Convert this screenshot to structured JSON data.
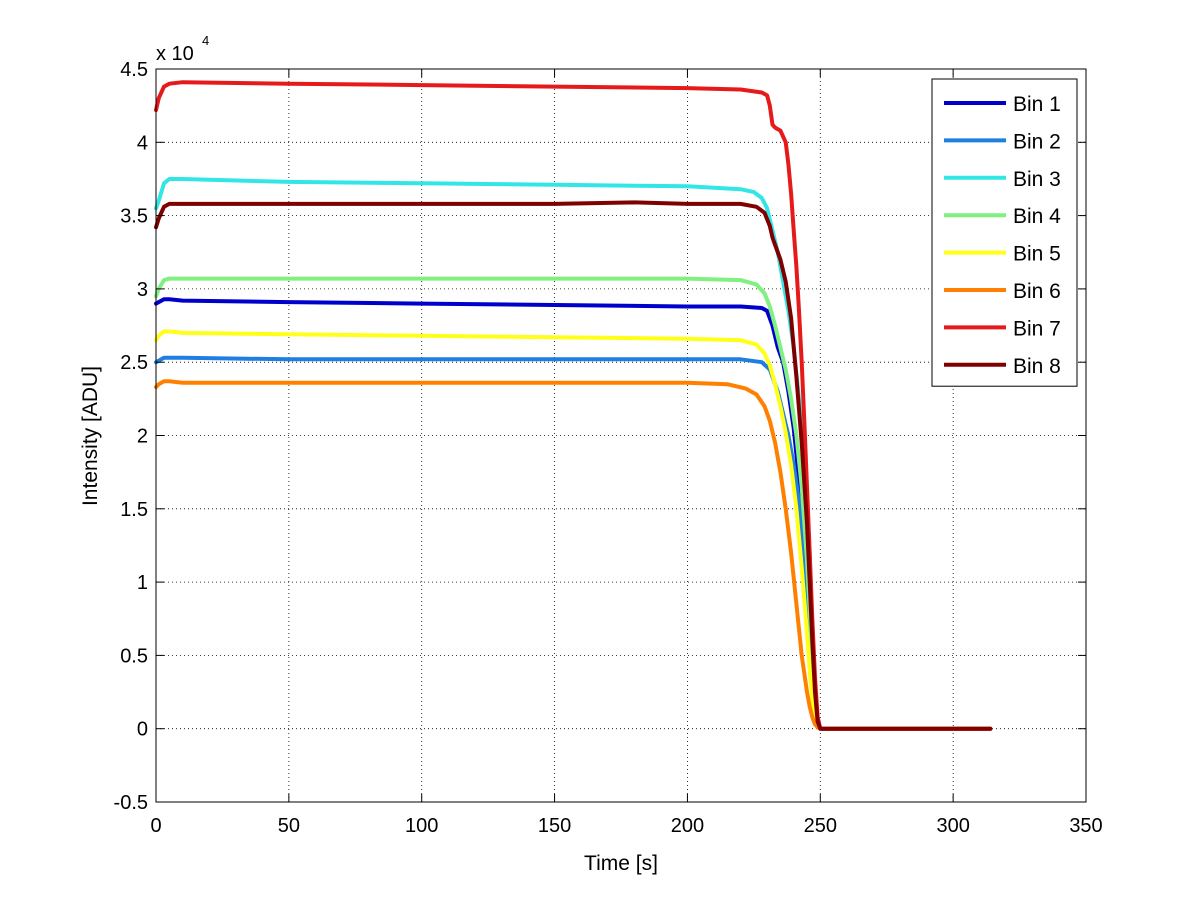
{
  "chart_data": {
    "type": "line",
    "title": "",
    "xlabel": "Time [s]",
    "ylabel": "Intensity [ADU]",
    "xlim": [
      0,
      350
    ],
    "ylim": [
      -0.5,
      4.5
    ],
    "x_ticks": [
      "0",
      "50",
      "100",
      "150",
      "200",
      "250",
      "300",
      "350"
    ],
    "x_tick_values": [
      0,
      50,
      100,
      150,
      200,
      250,
      300,
      350
    ],
    "y_ticks": [
      "-0.5",
      "0",
      "0.5",
      "1",
      "1.5",
      "2",
      "2.5",
      "3",
      "3.5",
      "4",
      "4.5"
    ],
    "y_tick_values": [
      -0.5,
      0,
      0.5,
      1,
      1.5,
      2,
      2.5,
      3,
      3.5,
      4,
      4.5
    ],
    "y_multiplier_base": "x 10",
    "y_multiplier_exponent": "4",
    "grid": true,
    "legend_position": "top-right",
    "series": [
      {
        "name": "Bin 1",
        "color": "#0000cc",
        "points": [
          [
            0,
            2.9
          ],
          [
            1,
            2.91
          ],
          [
            3,
            2.93
          ],
          [
            5,
            2.93
          ],
          [
            10,
            2.92
          ],
          [
            50,
            2.91
          ],
          [
            100,
            2.9
          ],
          [
            150,
            2.89
          ],
          [
            200,
            2.88
          ],
          [
            220,
            2.88
          ],
          [
            228,
            2.87
          ],
          [
            230,
            2.85
          ],
          [
            232,
            2.75
          ],
          [
            234,
            2.6
          ],
          [
            236,
            2.5
          ],
          [
            238,
            2.3
          ],
          [
            240,
            2.05
          ],
          [
            242,
            1.7
          ],
          [
            244,
            1.3
          ],
          [
            246,
            0.75
          ],
          [
            247,
            0.4
          ],
          [
            248,
            0.1
          ],
          [
            249,
            0.02
          ],
          [
            250,
            0.0
          ],
          [
            314,
            0.0
          ]
        ]
      },
      {
        "name": "Bin 2",
        "color": "#1f7fe0",
        "points": [
          [
            0,
            2.5
          ],
          [
            1,
            2.51
          ],
          [
            3,
            2.53
          ],
          [
            5,
            2.53
          ],
          [
            10,
            2.53
          ],
          [
            50,
            2.52
          ],
          [
            100,
            2.52
          ],
          [
            150,
            2.52
          ],
          [
            200,
            2.52
          ],
          [
            220,
            2.52
          ],
          [
            228,
            2.5
          ],
          [
            231,
            2.45
          ],
          [
            234,
            2.3
          ],
          [
            236,
            2.15
          ],
          [
            238,
            2.0
          ],
          [
            240,
            1.8
          ],
          [
            242,
            1.55
          ],
          [
            244,
            1.2
          ],
          [
            246,
            0.75
          ],
          [
            247,
            0.45
          ],
          [
            248,
            0.15
          ],
          [
            249,
            0.02
          ],
          [
            250,
            0.0
          ],
          [
            314,
            0.0
          ]
        ]
      },
      {
        "name": "Bin 3",
        "color": "#33e6e6",
        "points": [
          [
            0,
            3.55
          ],
          [
            1,
            3.6
          ],
          [
            3,
            3.72
          ],
          [
            5,
            3.75
          ],
          [
            10,
            3.75
          ],
          [
            50,
            3.73
          ],
          [
            100,
            3.72
          ],
          [
            150,
            3.71
          ],
          [
            200,
            3.7
          ],
          [
            220,
            3.68
          ],
          [
            225,
            3.66
          ],
          [
            228,
            3.62
          ],
          [
            230,
            3.55
          ],
          [
            232,
            3.4
          ],
          [
            234,
            3.25
          ],
          [
            236,
            3.05
          ],
          [
            238,
            2.85
          ],
          [
            240,
            2.6
          ],
          [
            242,
            2.25
          ],
          [
            244,
            1.8
          ],
          [
            246,
            1.2
          ],
          [
            247,
            0.7
          ],
          [
            248,
            0.3
          ],
          [
            249,
            0.05
          ],
          [
            250,
            0.0
          ],
          [
            314,
            0.0
          ]
        ]
      },
      {
        "name": "Bin 4",
        "color": "#80f080",
        "points": [
          [
            0,
            2.95
          ],
          [
            1,
            3.0
          ],
          [
            3,
            3.06
          ],
          [
            5,
            3.07
          ],
          [
            10,
            3.07
          ],
          [
            50,
            3.07
          ],
          [
            100,
            3.07
          ],
          [
            150,
            3.07
          ],
          [
            200,
            3.07
          ],
          [
            220,
            3.06
          ],
          [
            226,
            3.03
          ],
          [
            229,
            2.97
          ],
          [
            231,
            2.88
          ],
          [
            233,
            2.75
          ],
          [
            235,
            2.6
          ],
          [
            237,
            2.45
          ],
          [
            239,
            2.25
          ],
          [
            241,
            2.0
          ],
          [
            243,
            1.65
          ],
          [
            245,
            1.15
          ],
          [
            246,
            0.8
          ],
          [
            247,
            0.45
          ],
          [
            248,
            0.15
          ],
          [
            249,
            0.02
          ],
          [
            250,
            0.0
          ],
          [
            314,
            0.0
          ]
        ]
      },
      {
        "name": "Bin 5",
        "color": "#ffff1a",
        "points": [
          [
            0,
            2.65
          ],
          [
            1,
            2.68
          ],
          [
            3,
            2.71
          ],
          [
            5,
            2.71
          ],
          [
            10,
            2.7
          ],
          [
            50,
            2.69
          ],
          [
            100,
            2.68
          ],
          [
            150,
            2.67
          ],
          [
            200,
            2.66
          ],
          [
            220,
            2.65
          ],
          [
            226,
            2.62
          ],
          [
            229,
            2.56
          ],
          [
            231,
            2.48
          ],
          [
            233,
            2.35
          ],
          [
            235,
            2.2
          ],
          [
            237,
            2.02
          ],
          [
            239,
            1.8
          ],
          [
            241,
            1.5
          ],
          [
            243,
            1.1
          ],
          [
            245,
            0.65
          ],
          [
            246,
            0.4
          ],
          [
            247,
            0.2
          ],
          [
            248,
            0.05
          ],
          [
            249,
            0.01
          ],
          [
            250,
            0.0
          ],
          [
            314,
            0.0
          ]
        ]
      },
      {
        "name": "Bin 6",
        "color": "#ff8000",
        "points": [
          [
            0,
            2.33
          ],
          [
            1,
            2.35
          ],
          [
            3,
            2.37
          ],
          [
            5,
            2.37
          ],
          [
            10,
            2.36
          ],
          [
            50,
            2.36
          ],
          [
            100,
            2.36
          ],
          [
            150,
            2.36
          ],
          [
            200,
            2.36
          ],
          [
            215,
            2.35
          ],
          [
            222,
            2.32
          ],
          [
            226,
            2.28
          ],
          [
            229,
            2.2
          ],
          [
            231,
            2.1
          ],
          [
            233,
            1.95
          ],
          [
            235,
            1.75
          ],
          [
            237,
            1.5
          ],
          [
            239,
            1.2
          ],
          [
            241,
            0.85
          ],
          [
            243,
            0.5
          ],
          [
            245,
            0.25
          ],
          [
            246,
            0.15
          ],
          [
            247,
            0.08
          ],
          [
            248,
            0.03
          ],
          [
            249,
            0.01
          ],
          [
            250,
            0.0
          ],
          [
            314,
            0.0
          ]
        ]
      },
      {
        "name": "Bin 7",
        "color": "#e61a1a",
        "points": [
          [
            0,
            4.22
          ],
          [
            1,
            4.3
          ],
          [
            3,
            4.38
          ],
          [
            5,
            4.4
          ],
          [
            10,
            4.41
          ],
          [
            50,
            4.4
          ],
          [
            100,
            4.39
          ],
          [
            150,
            4.38
          ],
          [
            200,
            4.37
          ],
          [
            220,
            4.36
          ],
          [
            228,
            4.34
          ],
          [
            230,
            4.32
          ],
          [
            231,
            4.25
          ],
          [
            232,
            4.12
          ],
          [
            233,
            4.1
          ],
          [
            235,
            4.08
          ],
          [
            237,
            4.0
          ],
          [
            238,
            3.85
          ],
          [
            239,
            3.65
          ],
          [
            240,
            3.4
          ],
          [
            241,
            3.15
          ],
          [
            242,
            2.85
          ],
          [
            243,
            2.5
          ],
          [
            244,
            2.1
          ],
          [
            245,
            1.65
          ],
          [
            246,
            1.2
          ],
          [
            247,
            0.75
          ],
          [
            248,
            0.35
          ],
          [
            249,
            0.08
          ],
          [
            250,
            0.0
          ],
          [
            314,
            0.0
          ]
        ]
      },
      {
        "name": "Bin 8",
        "color": "#800000",
        "points": [
          [
            0,
            3.42
          ],
          [
            1,
            3.48
          ],
          [
            3,
            3.56
          ],
          [
            5,
            3.58
          ],
          [
            10,
            3.58
          ],
          [
            50,
            3.58
          ],
          [
            100,
            3.58
          ],
          [
            150,
            3.58
          ],
          [
            180,
            3.59
          ],
          [
            200,
            3.58
          ],
          [
            220,
            3.58
          ],
          [
            226,
            3.56
          ],
          [
            229,
            3.52
          ],
          [
            231,
            3.43
          ],
          [
            232,
            3.35
          ],
          [
            233,
            3.3
          ],
          [
            235,
            3.2
          ],
          [
            237,
            3.05
          ],
          [
            239,
            2.8
          ],
          [
            241,
            2.4
          ],
          [
            243,
            1.95
          ],
          [
            245,
            1.4
          ],
          [
            246,
            1.0
          ],
          [
            247,
            0.6
          ],
          [
            248,
            0.25
          ],
          [
            249,
            0.05
          ],
          [
            250,
            0.0
          ],
          [
            314,
            0.0
          ]
        ]
      }
    ]
  }
}
